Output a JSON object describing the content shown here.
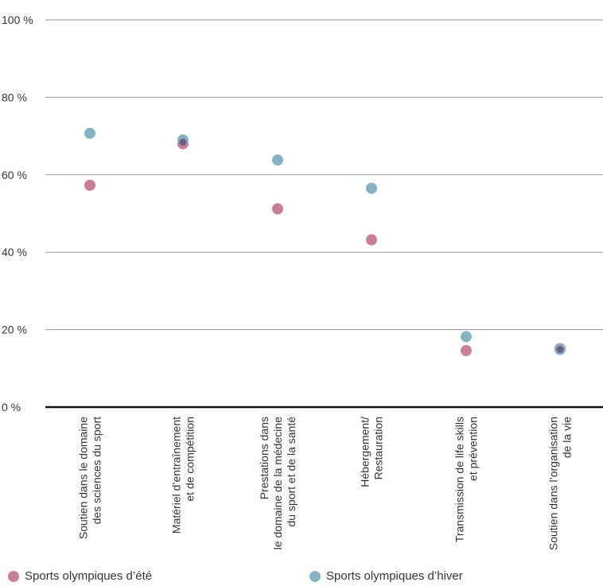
{
  "chart_data": {
    "type": "scatter",
    "categories": [
      [
        "Soutien dans le domaine",
        "des sciences du sport"
      ],
      [
        "Matériel d’entraînement",
        "et de compétition"
      ],
      [
        "Prestations dans",
        "le domaine de la médecine",
        "du sport et de la santé"
      ],
      [
        "Hébergement/",
        "Restauration"
      ],
      [
        "Transmission de life skills",
        "et prévention"
      ],
      [
        "Soutien dans l’organisation",
        "de la vie"
      ]
    ],
    "series": [
      {
        "name": "Sports olympiques d’été",
        "color": "#c97e97",
        "values": [
          57.3,
          68.0,
          51.2,
          43.2,
          14.6,
          15.1
        ]
      },
      {
        "name": "Sports olympiques d’hiver",
        "color": "#86b2c2",
        "values": [
          70.7,
          69.0,
          63.8,
          56.5,
          18.2,
          14.9
        ]
      }
    ],
    "overlap_color": "#6b4f72",
    "y_ticks": [
      "0 %",
      "20 %",
      "40 %",
      "60 %",
      "80 %",
      "100 %"
    ],
    "ylim": [
      0,
      100
    ],
    "grid": true,
    "legend_position": "bottom"
  }
}
